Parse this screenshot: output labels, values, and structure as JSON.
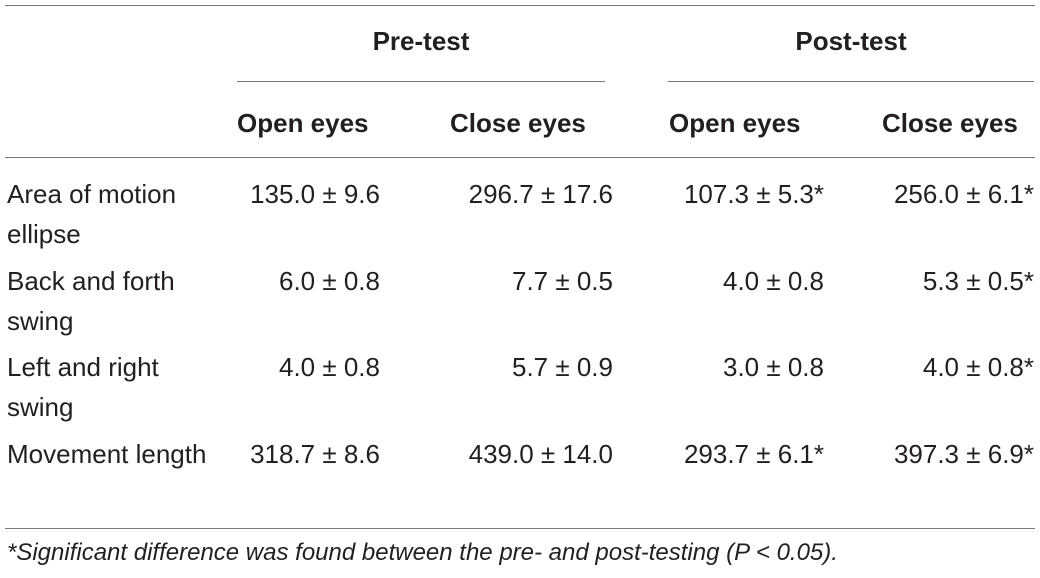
{
  "table": {
    "groups": [
      {
        "label": "Pre-test"
      },
      {
        "label": "Post-test"
      }
    ],
    "columns": [
      "Open eyes",
      "Close eyes",
      "Open eyes",
      "Close eyes"
    ],
    "rows": [
      {
        "label": "Area of motion ellipse",
        "cells": [
          "135.0 ± 9.6",
          "296.7 ± 17.6",
          "107.3 ± 5.3*",
          "256.0 ± 6.1*"
        ]
      },
      {
        "label": "Back and forth swing",
        "cells": [
          "6.0 ± 0.8",
          "7.7 ± 0.5",
          "4.0 ± 0.8",
          "5.3 ± 0.5*"
        ]
      },
      {
        "label": "Left and right swing",
        "cells": [
          "4.0 ± 0.8",
          "5.7 ± 0.9",
          "3.0 ± 0.8",
          "4.0 ± 0.8*"
        ]
      },
      {
        "label": "Movement length",
        "cells": [
          "318.7 ± 8.6",
          "439.0 ± 14.0",
          "293.7 ± 6.1*",
          "397.3 ± 6.9*"
        ]
      }
    ],
    "footnote": "*Significant difference was found between the pre- and post-testing (P < 0.05)."
  }
}
